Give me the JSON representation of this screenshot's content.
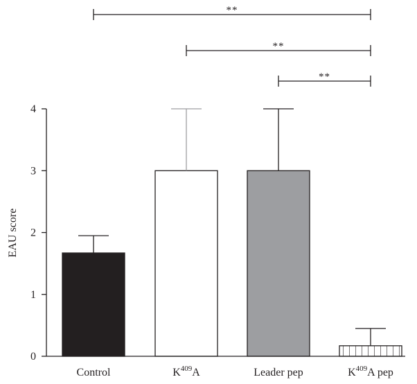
{
  "chart_data": {
    "type": "bar",
    "title": "",
    "xlabel": "",
    "ylabel": "EAU score",
    "ylim": [
      0,
      4
    ],
    "yticks": [
      "0",
      "1",
      "2",
      "3",
      "4"
    ],
    "categories": [
      {
        "label": "Control",
        "base": "Control",
        "sup": "",
        "tail": ""
      },
      {
        "label": "K409A",
        "base": "K",
        "sup": "409",
        "tail": "A"
      },
      {
        "label": "Leader pep",
        "base": "Leader pep",
        "sup": "",
        "tail": ""
      },
      {
        "label": "K409A pep",
        "base": "K",
        "sup": "409",
        "tail": "A pep"
      }
    ],
    "values": [
      1.67,
      3.0,
      3.0,
      0.17
    ],
    "errors": [
      0.28,
      1.0,
      1.0,
      0.28
    ],
    "bar_styles": [
      {
        "fill": "#231f20",
        "pattern": "solid"
      },
      {
        "fill": "#ffffff",
        "pattern": "solid"
      },
      {
        "fill": "#9d9ea1",
        "pattern": "solid"
      },
      {
        "fill": "#ffffff",
        "pattern": "vertical-hatch"
      }
    ],
    "error_colors": [
      "#231f20",
      "#9d9ea1",
      "#231f20",
      "#231f20"
    ],
    "significance": [
      {
        "from": 0,
        "to": 3,
        "label": "**"
      },
      {
        "from": 1,
        "to": 3,
        "label": "**"
      },
      {
        "from": 2,
        "to": 3,
        "label": "**"
      }
    ],
    "grid": false
  }
}
